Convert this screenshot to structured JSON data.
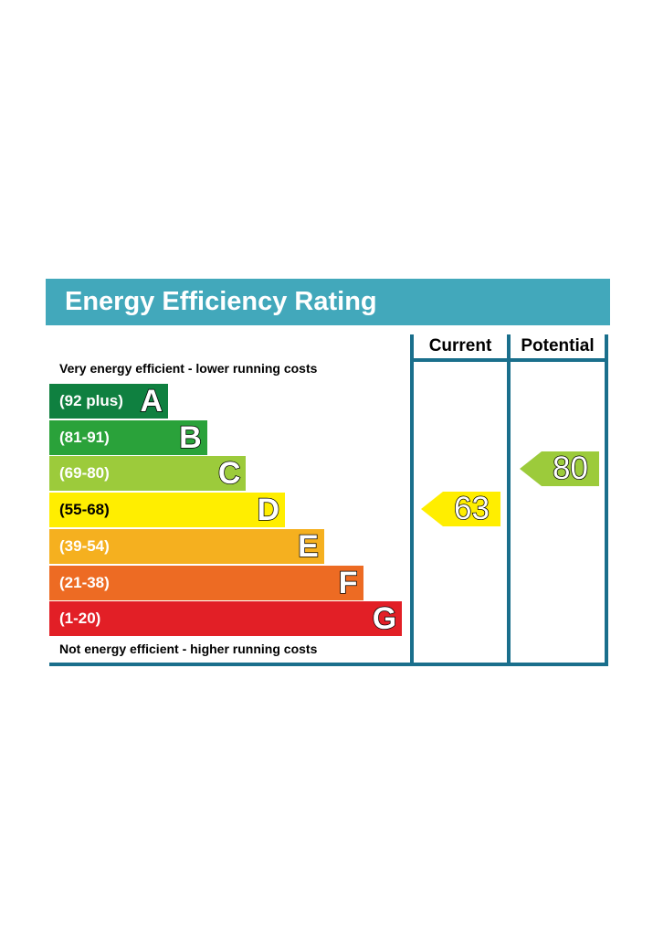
{
  "chart_data": {
    "type": "bar",
    "title": "Energy Efficiency Rating",
    "columns": [
      "Current",
      "Potential"
    ],
    "top_caption": "Very energy efficient - lower running costs",
    "bottom_caption": "Not energy efficient - higher running costs",
    "bands": [
      {
        "letter": "A",
        "range": "(92 plus)",
        "color": "#0f8040"
      },
      {
        "letter": "B",
        "range": "(81-91)",
        "color": "#2aa23a"
      },
      {
        "letter": "C",
        "range": "(69-80)",
        "color": "#9ccb3b"
      },
      {
        "letter": "D",
        "range": "(55-68)",
        "color": "#ffee00"
      },
      {
        "letter": "E",
        "range": "(39-54)",
        "color": "#f5b01f"
      },
      {
        "letter": "F",
        "range": "(21-38)",
        "color": "#ed6b23"
      },
      {
        "letter": "G",
        "range": "(1-20)",
        "color": "#e21f26"
      }
    ],
    "current": {
      "value": 63,
      "label": "63",
      "color": "#ffee00"
    },
    "potential": {
      "value": 80,
      "label": "80",
      "color": "#9ccb3b"
    }
  }
}
